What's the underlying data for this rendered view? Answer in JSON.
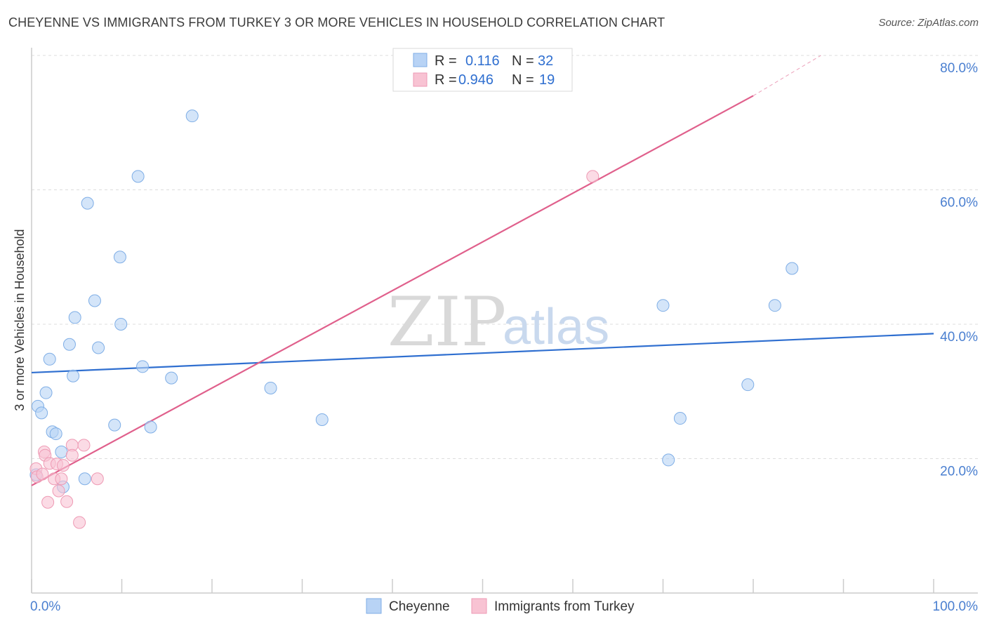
{
  "header": {
    "title": "CHEYENNE VS IMMIGRANTS FROM TURKEY 3 OR MORE VEHICLES IN HOUSEHOLD CORRELATION CHART",
    "source": "Source: ZipAtlas.com"
  },
  "watermark": {
    "zip": "ZIP",
    "atlas": "atlas"
  },
  "legend": {
    "r_label": "R =",
    "n_label": "N =",
    "rows": [
      {
        "r": "0.116",
        "n": "32"
      },
      {
        "r": "0.946",
        "n": "19"
      }
    ]
  },
  "colors": {
    "blue_fill": "#b8d3f5",
    "blue_stroke": "#7faee6",
    "blue_line": "#2f6fd0",
    "pink_fill": "#f8c3d3",
    "pink_stroke": "#ee9ab4",
    "pink_line": "#e0608c"
  },
  "chart_data": {
    "type": "scatter",
    "title": "CHEYENNE VS IMMIGRANTS FROM TURKEY 3 OR MORE VEHICLES IN HOUSEHOLD CORRELATION CHART",
    "xlabel": "",
    "ylabel": "3 or more Vehicles in Household",
    "xlim": [
      0,
      100
    ],
    "ylim": [
      0,
      80
    ],
    "x_tick_labels": [
      "0.0%",
      "100.0%"
    ],
    "y_ticks": [
      20,
      40,
      60,
      80
    ],
    "y_tick_labels": [
      "20.0%",
      "40.0%",
      "60.0%",
      "80.0%"
    ],
    "grid": true,
    "legend_placement": "bottom",
    "series": [
      {
        "name": "Cheyenne",
        "color": "#7faee6",
        "r": 0.116,
        "n": 32,
        "points": [
          [
            17.8,
            71.0
          ],
          [
            11.8,
            62.0
          ],
          [
            6.2,
            58.0
          ],
          [
            9.8,
            50.0
          ],
          [
            7.0,
            43.5
          ],
          [
            4.8,
            41.0
          ],
          [
            9.9,
            40.0
          ],
          [
            4.2,
            37.0
          ],
          [
            7.4,
            36.5
          ],
          [
            2.0,
            34.8
          ],
          [
            12.3,
            33.7
          ],
          [
            4.6,
            32.3
          ],
          [
            15.5,
            32.0
          ],
          [
            1.6,
            29.8
          ],
          [
            26.5,
            30.5
          ],
          [
            0.7,
            27.8
          ],
          [
            1.1,
            26.8
          ],
          [
            32.2,
            25.8
          ],
          [
            9.2,
            25.0
          ],
          [
            13.2,
            24.7
          ],
          [
            2.3,
            24.0
          ],
          [
            2.7,
            23.7
          ],
          [
            3.3,
            21.0
          ],
          [
            0.5,
            17.6
          ],
          [
            5.9,
            17.0
          ],
          [
            3.5,
            15.8
          ],
          [
            70.6,
            19.8
          ],
          [
            71.9,
            26.0
          ],
          [
            70.0,
            42.8
          ],
          [
            79.4,
            31.0
          ],
          [
            82.4,
            42.8
          ],
          [
            84.3,
            48.3
          ]
        ]
      },
      {
        "name": "Immigrants from Turkey",
        "color": "#ee9ab4",
        "r": 0.946,
        "n": 19,
        "points": [
          [
            62.2,
            62.0
          ],
          [
            0.5,
            18.5
          ],
          [
            0.6,
            17.3
          ],
          [
            1.2,
            17.7
          ],
          [
            1.4,
            21.0
          ],
          [
            1.5,
            20.5
          ],
          [
            2.0,
            19.3
          ],
          [
            2.5,
            17.0
          ],
          [
            2.8,
            19.2
          ],
          [
            3.3,
            17.0
          ],
          [
            3.5,
            19.0
          ],
          [
            4.5,
            22.0
          ],
          [
            4.5,
            20.5
          ],
          [
            5.8,
            22.0
          ],
          [
            7.3,
            17.0
          ],
          [
            1.8,
            13.5
          ],
          [
            3.0,
            15.2
          ],
          [
            3.9,
            13.6
          ],
          [
            5.3,
            10.5
          ]
        ]
      }
    ],
    "trend_lines": [
      {
        "series": "Cheyenne",
        "x": [
          0,
          100
        ],
        "y": [
          32.8,
          38.6
        ]
      },
      {
        "series": "Immigrants from Turkey",
        "x": [
          0,
          80.0
        ],
        "y": [
          16.0,
          74.0
        ],
        "dashed_extension": {
          "x": [
            80.0,
            87.5
          ],
          "y": [
            74.0,
            80.0
          ]
        }
      }
    ]
  }
}
